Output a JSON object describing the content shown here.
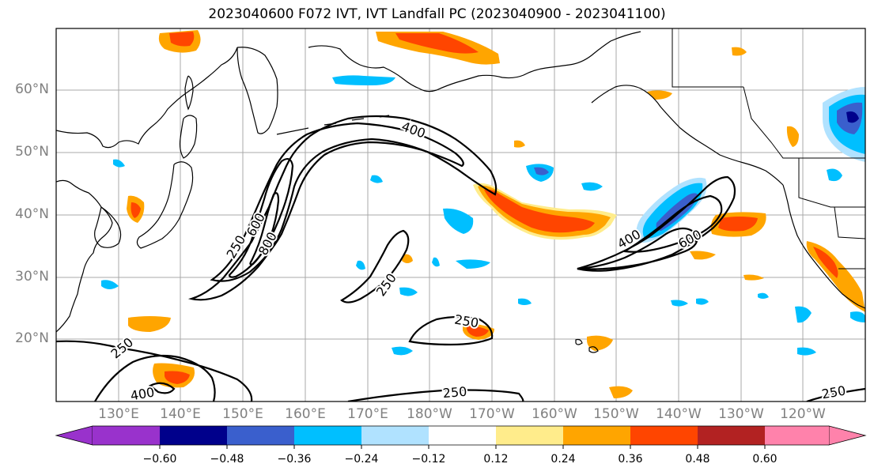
{
  "title": "2023040600 F072 IVT, IVT Landfall PC (2023040900 - 2023041100)",
  "lat_labels": [
    "60°N",
    "50°N",
    "40°N",
    "30°N",
    "20°N"
  ],
  "lon_labels": [
    "130°E",
    "140°E",
    "150°E",
    "160°E",
    "170°E",
    "180°W",
    "170°W",
    "160°W",
    "150°W",
    "140°W",
    "130°W",
    "120°W"
  ],
  "contour_labels": [
    "400",
    "250",
    "600",
    "800",
    "250",
    "400",
    "600",
    "250",
    "250",
    "400",
    "250",
    "250"
  ],
  "colorbar": {
    "colors": [
      "#9932CC",
      "#00008B",
      "#3A5FCD",
      "#00BFFF",
      "#B0E2FF",
      "#FFFFFF",
      "#FFEC8B",
      "#FFA500",
      "#FF4500",
      "#B22222",
      "#FF82AB"
    ],
    "tick_labels": [
      "−0.60",
      "−0.48",
      "−0.36",
      "−0.24",
      "−0.12",
      "0.12",
      "0.24",
      "0.36",
      "0.48",
      "0.60"
    ]
  },
  "colors": {
    "contour": "#000000",
    "grid": "#a0a0a0",
    "coast": "#000000"
  }
}
